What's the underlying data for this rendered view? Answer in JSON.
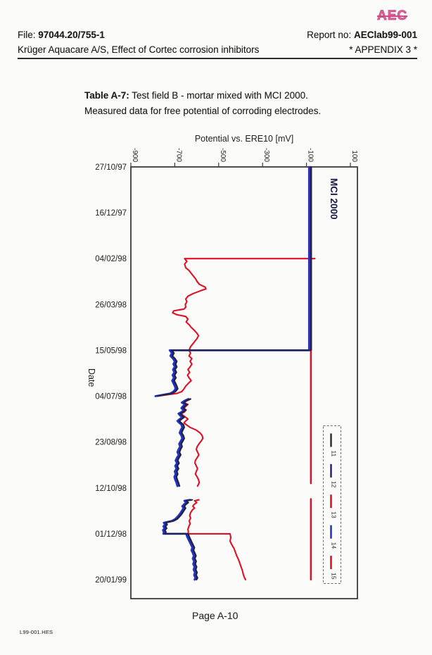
{
  "header": {
    "logo": "AEC",
    "file_label": "File: ",
    "file_number": "97044.20/755-1",
    "report_label": "Report no: ",
    "report_number": "AEClab99-001",
    "client_line": "Krüger Aquacare A/S, Effect of Cortec corrosion inhibitors",
    "appendix": "* APPENDIX 3 *"
  },
  "caption": {
    "label": "Table A-7:",
    "rest": " Test field B - mortar mixed with MCI 2000.",
    "line2": "Measured data for free potential of corroding electrodes."
  },
  "footer": {
    "page_number": "Page A-10",
    "doc_code": "L99-001.HES"
  },
  "chart_data": {
    "type": "line",
    "title": "Potential vs. ERE10  [mV]",
    "layout_hint": "time axis runs vertically downward on left; potential axis horizontal at top; x tick labels, Date label, annotation and legend labels rotated 90° clockwise; grid off; legend at lower right inside plot, dashed border",
    "annotation": "MCI 2000",
    "x_axis": {
      "label": "Potential vs. ERE10  [mV]",
      "ticks": [
        -900,
        -700,
        -500,
        -300,
        -100,
        100
      ],
      "range": [
        -900,
        132
      ],
      "position": "top"
    },
    "y_axis": {
      "label": "Date",
      "range_days": [
        0,
        471
      ],
      "date_ticks": [
        {
          "label": "27/10/97",
          "day": 0
        },
        {
          "label": "16/12/97",
          "day": 50
        },
        {
          "label": "04/02/98",
          "day": 100
        },
        {
          "label": "26/03/98",
          "day": 150
        },
        {
          "label": "15/05/98",
          "day": 200
        },
        {
          "label": "04/07/98",
          "day": 250
        },
        {
          "label": "23/08/98",
          "day": 300
        },
        {
          "label": "12/10/98",
          "day": 350
        },
        {
          "label": "01/12/98",
          "day": 400
        },
        {
          "label": "20/01/99",
          "day": 450
        }
      ]
    },
    "legend": {
      "border": "dashed",
      "entries": [
        {
          "label": "11",
          "color": "#26262e",
          "width": 2.4
        },
        {
          "label": "12",
          "color": "#1b1b6b",
          "width": 2.4
        },
        {
          "label": "13",
          "color": "#dc1126",
          "width": 2.6
        },
        {
          "label": "14",
          "color": "#2334c0",
          "width": 2.6
        },
        {
          "label": "15",
          "color": "#dc1126",
          "width": 2.6
        }
      ]
    },
    "paths": {
      "dark_path": [
        [
          0,
          -80
        ],
        [
          200,
          -80
        ],
        [
          200,
          -715
        ],
        [
          203,
          -705
        ],
        [
          206,
          -712
        ],
        [
          209,
          -700
        ],
        [
          212,
          -692
        ],
        [
          215,
          -698
        ],
        [
          218,
          -692
        ],
        [
          221,
          -700
        ],
        [
          224,
          -694
        ],
        [
          227,
          -702
        ],
        [
          230,
          -696
        ],
        [
          233,
          -704
        ],
        [
          236,
          -698
        ],
        [
          239,
          -692
        ],
        [
          242,
          -688
        ],
        [
          245,
          -698
        ],
        [
          247,
          -712
        ],
        [
          250,
          -780
        ],
        null,
        [
          253,
          -630
        ],
        [
          255,
          -648
        ],
        [
          257,
          -660
        ],
        [
          259,
          -645
        ],
        [
          261,
          -655
        ],
        [
          263,
          -662
        ],
        [
          265,
          -652
        ],
        [
          267,
          -660
        ],
        [
          269,
          -675
        ],
        [
          271,
          -668
        ],
        [
          273,
          -658
        ],
        [
          275,
          -670
        ],
        [
          277,
          -680
        ],
        [
          279,
          -672
        ],
        [
          281,
          -662
        ],
        [
          284,
          -658
        ],
        [
          287,
          -665
        ],
        [
          290,
          -670
        ],
        [
          293,
          -662
        ],
        [
          296,
          -658
        ],
        [
          299,
          -665
        ],
        [
          302,
          -672
        ],
        [
          305,
          -668
        ],
        [
          308,
          -675
        ],
        [
          311,
          -680
        ],
        [
          314,
          -674
        ],
        [
          317,
          -682
        ],
        [
          320,
          -688
        ],
        [
          323,
          -682
        ],
        [
          326,
          -690
        ],
        [
          329,
          -684
        ],
        [
          332,
          -692
        ],
        [
          335,
          -688
        ],
        [
          338,
          -694
        ],
        [
          341,
          -690
        ],
        [
          344,
          -685
        ],
        [
          348,
          -680
        ],
        null,
        [
          363,
          -622
        ],
        [
          364,
          -648
        ],
        [
          366,
          -640
        ],
        [
          368,
          -650
        ],
        [
          370,
          -658
        ],
        [
          372,
          -652
        ],
        [
          375,
          -660
        ],
        [
          378,
          -668
        ],
        [
          381,
          -678
        ],
        [
          384,
          -690
        ],
        [
          386,
          -705
        ],
        [
          388,
          -742
        ],
        [
          390,
          -736
        ],
        [
          392,
          -744
        ],
        [
          394,
          -738
        ],
        [
          396,
          -746
        ],
        [
          398,
          -742
        ],
        [
          400,
          -744
        ],
        [
          400,
          -640
        ],
        [
          403,
          -636
        ],
        [
          406,
          -630
        ],
        [
          409,
          -624
        ],
        [
          412,
          -618
        ],
        [
          415,
          -612
        ],
        [
          418,
          -616
        ],
        [
          421,
          -610
        ],
        [
          424,
          -605
        ],
        [
          427,
          -610
        ],
        [
          430,
          -604
        ],
        [
          433,
          -608
        ],
        [
          436,
          -602
        ],
        [
          439,
          -606
        ],
        [
          442,
          -600
        ],
        [
          445,
          -604
        ],
        [
          448,
          -598
        ],
        [
          450,
          -602
        ]
      ]
    },
    "series": [
      {
        "name": "15",
        "color": "#dc1126",
        "width": 2.4,
        "points": [
          [
            0,
            -80
          ],
          [
            345,
            -80
          ],
          null,
          [
            362,
            -80
          ],
          [
            450,
            -80
          ]
        ]
      },
      {
        "name": "13",
        "color": "#dc1126",
        "width": 2.1,
        "points": [
          [
            0,
            -80
          ],
          [
            100,
            -80
          ],
          [
            100,
            -62
          ],
          [
            100,
            -655
          ],
          [
            103,
            -645
          ],
          [
            106,
            -655
          ],
          [
            110,
            -650
          ],
          [
            113,
            -635
          ],
          [
            116,
            -625
          ],
          [
            119,
            -615
          ],
          [
            122,
            -605
          ],
          [
            125,
            -598
          ],
          [
            128,
            -588
          ],
          [
            131,
            -562
          ],
          [
            133,
            -558
          ],
          [
            135,
            -582
          ],
          [
            138,
            -615
          ],
          [
            141,
            -640
          ],
          [
            144,
            -650
          ],
          [
            147,
            -645
          ],
          [
            150,
            -652
          ],
          [
            153,
            -650
          ],
          [
            155,
            -658
          ],
          [
            157,
            -705
          ],
          [
            159,
            -710
          ],
          [
            161,
            -692
          ],
          [
            163,
            -650
          ],
          [
            166,
            -640
          ],
          [
            169,
            -648
          ],
          [
            172,
            -635
          ],
          [
            175,
            -625
          ],
          [
            178,
            -612
          ],
          [
            181,
            -600
          ],
          [
            184,
            -592
          ],
          [
            187,
            -598
          ],
          [
            190,
            -608
          ],
          [
            193,
            -618
          ],
          [
            196,
            -628
          ],
          [
            200,
            -635
          ],
          [
            203,
            -628
          ],
          [
            206,
            -635
          ],
          [
            209,
            -622
          ],
          [
            212,
            -630
          ],
          [
            215,
            -622
          ],
          [
            218,
            -630
          ],
          [
            221,
            -640
          ],
          [
            224,
            -632
          ],
          [
            227,
            -642
          ],
          [
            230,
            -635
          ],
          [
            233,
            -625
          ],
          [
            236,
            -638
          ],
          [
            239,
            -650
          ],
          [
            242,
            -658
          ],
          [
            245,
            -668
          ],
          [
            247,
            -690
          ],
          [
            250,
            -780
          ],
          null,
          [
            253,
            -628
          ],
          [
            255,
            -645
          ],
          [
            257,
            -658
          ],
          [
            259,
            -640
          ],
          [
            261,
            -650
          ],
          [
            263,
            -658
          ],
          [
            265,
            -648
          ],
          [
            267,
            -655
          ],
          [
            269,
            -670
          ],
          [
            271,
            -662
          ],
          [
            273,
            -650
          ],
          [
            275,
            -640
          ],
          [
            277,
            -650
          ],
          [
            279,
            -658
          ],
          [
            281,
            -648
          ],
          [
            284,
            -630
          ],
          [
            287,
            -602
          ],
          [
            290,
            -585
          ],
          [
            293,
            -575
          ],
          [
            296,
            -572
          ],
          [
            299,
            -580
          ],
          [
            302,
            -590
          ],
          [
            305,
            -598
          ],
          [
            308,
            -602
          ],
          [
            311,
            -596
          ],
          [
            314,
            -590
          ],
          [
            317,
            -598
          ],
          [
            320,
            -606
          ],
          [
            323,
            -608
          ],
          [
            326,
            -602
          ],
          [
            329,
            -596
          ],
          [
            332,
            -602
          ],
          [
            335,
            -606
          ],
          [
            338,
            -598
          ],
          [
            341,
            -592
          ],
          [
            344,
            -588
          ],
          [
            348,
            -596
          ],
          null,
          [
            363,
            -590
          ],
          [
            364,
            -610
          ],
          [
            366,
            -600
          ],
          [
            368,
            -612
          ],
          [
            370,
            -618
          ],
          [
            372,
            -610
          ],
          [
            374,
            -620
          ],
          [
            377,
            -628
          ],
          [
            380,
            -632
          ],
          [
            383,
            -628
          ],
          [
            386,
            -634
          ],
          [
            389,
            -630
          ],
          [
            392,
            -636
          ],
          [
            395,
            -640
          ],
          [
            398,
            -638
          ],
          [
            400,
            -640
          ],
          [
            400,
            -448
          ],
          [
            404,
            -445
          ],
          [
            408,
            -448
          ],
          [
            412,
            -440
          ],
          [
            416,
            -430
          ],
          [
            420,
            -424
          ],
          [
            424,
            -418
          ],
          [
            428,
            -410
          ],
          [
            432,
            -404
          ],
          [
            436,
            -398
          ],
          [
            440,
            -392
          ],
          [
            444,
            -388
          ],
          [
            447,
            -384
          ],
          [
            450,
            -378
          ]
        ]
      },
      {
        "name": "14",
        "color": "#2334c0",
        "width": 2.8,
        "points_ref": "dark_path",
        "mv_offset": -8
      },
      {
        "name": "12",
        "color": "#1b1b6b",
        "width": 2.1,
        "points_ref": "dark_path",
        "mv_offset": 0
      },
      {
        "name": "11",
        "color": "#26262e",
        "width": 1.3,
        "points_ref": "dark_path",
        "mv_offset": 3
      }
    ]
  }
}
